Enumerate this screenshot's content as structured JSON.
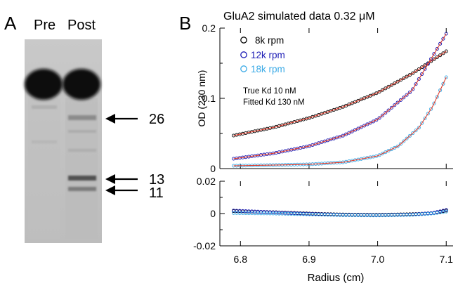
{
  "panel_a": {
    "label": "A",
    "lane_labels": [
      "Pre",
      "Post"
    ],
    "band_markers": [
      "26",
      "13",
      "11"
    ]
  },
  "panel_b": {
    "label": "B",
    "title": "GluA2 simulated data 0.32 μM",
    "note_lines": [
      "True Kd 10 nM",
      "Fitted Kd 130 nM"
    ],
    "legend_colors": [
      "#000000",
      "#1a1ab4",
      "#3aaae6"
    ]
  },
  "chart_data": [
    {
      "type": "scatter",
      "title": "GluA2 simulated data 0.32 μM",
      "xlabel": "",
      "ylabel": "OD (230 nm)",
      "xlim": [
        6.77,
        7.11
      ],
      "ylim": [
        0,
        0.2
      ],
      "x_ticks": [
        "6.8",
        "6.9",
        "7.0",
        "7.1"
      ],
      "y_ticks": [
        "0",
        "0.1",
        "0.2"
      ],
      "legend": "top-left",
      "fit_line_color": "#e03a2a",
      "series": [
        {
          "name": "8k rpm",
          "color": "#000000",
          "x": [
            6.79,
            6.85,
            6.9,
            6.95,
            7.0,
            7.05,
            7.1
          ],
          "y": [
            0.047,
            0.059,
            0.072,
            0.088,
            0.108,
            0.135,
            0.167
          ]
        },
        {
          "name": "12k rpm",
          "color": "#1a1ab4",
          "x": [
            6.79,
            6.85,
            6.9,
            6.95,
            7.0,
            7.05,
            7.1
          ],
          "y": [
            0.014,
            0.022,
            0.032,
            0.047,
            0.07,
            0.111,
            0.192
          ]
        },
        {
          "name": "18k rpm",
          "color": "#3aaae6",
          "x": [
            6.79,
            6.85,
            6.9,
            6.95,
            7.0,
            7.03,
            7.06,
            7.08,
            7.1
          ],
          "y": [
            0.004,
            0.005,
            0.006,
            0.009,
            0.018,
            0.032,
            0.058,
            0.088,
            0.13
          ]
        }
      ]
    },
    {
      "type": "scatter",
      "title": "",
      "xlabel": "Radius (cm)",
      "ylabel": "",
      "xlim": [
        6.77,
        7.11
      ],
      "ylim": [
        -0.02,
        0.02
      ],
      "x_ticks": [
        "6.8",
        "6.9",
        "7.0",
        "7.1"
      ],
      "y_ticks": [
        "0.02",
        "0",
        "-0.02"
      ],
      "series": [
        {
          "color": "#000000",
          "x": [
            6.79,
            6.85,
            6.9,
            6.95,
            7.0,
            7.05,
            7.08,
            7.1
          ],
          "y": [
            0.0015,
            0.0008,
            0.0,
            -0.0006,
            -0.0008,
            -0.0004,
            0.0002,
            0.0018
          ]
        },
        {
          "color": "#1a1ab4",
          "x": [
            6.79,
            6.85,
            6.9,
            6.95,
            7.0,
            7.05,
            7.08,
            7.1
          ],
          "y": [
            0.0018,
            0.0007,
            -0.0002,
            -0.0008,
            -0.001,
            -0.0006,
            0.0003,
            0.0022
          ]
        },
        {
          "color": "#3aaae6",
          "x": [
            6.79,
            6.85,
            6.9,
            6.95,
            7.0,
            7.05,
            7.08,
            7.1
          ],
          "y": [
            0.0003,
            0.0,
            -0.0005,
            -0.001,
            -0.0012,
            -0.0008,
            0.0,
            0.0012
          ]
        }
      ]
    }
  ]
}
